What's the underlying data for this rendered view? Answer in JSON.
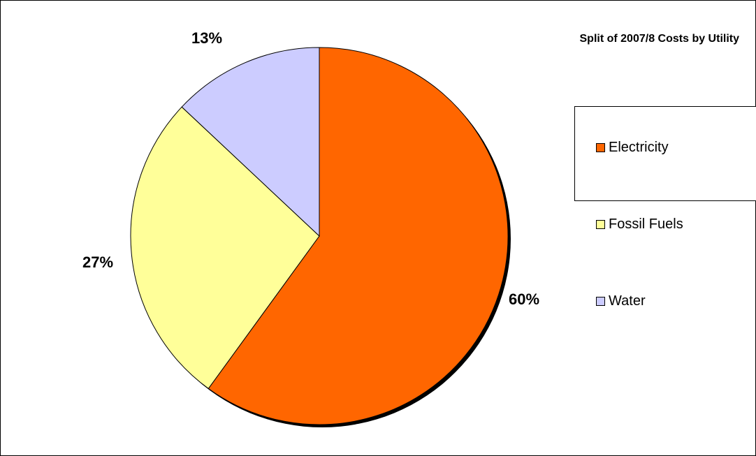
{
  "chart_data": {
    "type": "pie",
    "title": "Split of 2007/8 Costs by Utility",
    "categories": [
      "Electricity",
      "Fossil Fuels",
      "Water"
    ],
    "values": [
      60,
      27,
      13
    ],
    "data_labels": [
      "60%",
      "27%",
      "13%"
    ],
    "colors": [
      "#FF6600",
      "#FFFF99",
      "#CCCCFF"
    ],
    "legend": {
      "placement": "right",
      "entries": [
        "Electricity",
        "Fossil Fuels",
        "Water"
      ]
    },
    "start_angle_deg": 0,
    "direction": "clockwise",
    "shadow": true
  }
}
